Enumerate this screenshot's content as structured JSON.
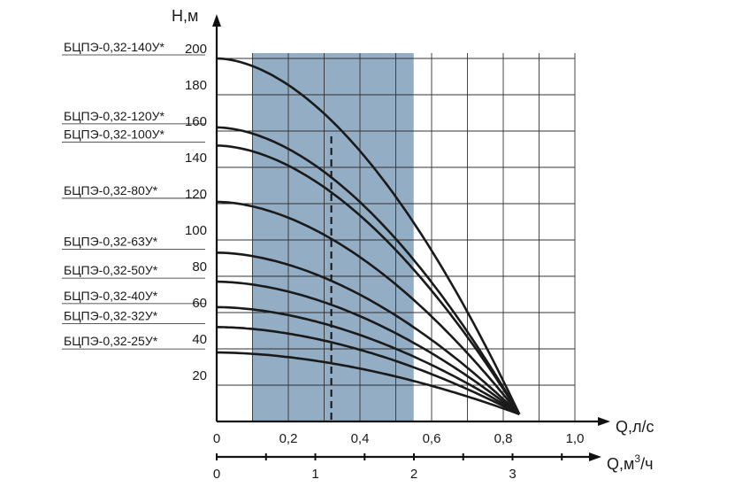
{
  "chart_data": {
    "type": "line",
    "ylabel": "Н,м",
    "xlabel": "Q,л/с",
    "x2label_base": "Q,м",
    "x2label_sup": "3",
    "x2label_tail": "/ч",
    "xlim": [
      0,
      1.0
    ],
    "ylim": [
      0,
      210
    ],
    "x2lim": [
      0,
      3.6
    ],
    "grid": true,
    "x_ticks": [
      "0",
      "0,2",
      "0,4",
      "0,6",
      "0,8",
      "1,0"
    ],
    "x_tick_values": [
      0,
      0.2,
      0.4,
      0.6,
      0.8,
      1.0
    ],
    "y_ticks": [
      "20",
      "40",
      "60",
      "80",
      "100",
      "120",
      "140",
      "160",
      "180",
      "200"
    ],
    "y_tick_values": [
      20,
      40,
      60,
      80,
      100,
      120,
      140,
      160,
      180,
      200
    ],
    "x2_ticks": [
      "0",
      "1",
      "2",
      "3"
    ],
    "x2_tick_values": [
      0,
      1,
      2,
      3
    ],
    "working_zone": {
      "x": [
        0.1,
        0.55
      ],
      "color": "#93aec4"
    },
    "nominal_flow": 0.32,
    "end_point": {
      "x": 0.845,
      "y": 4
    },
    "series": [
      {
        "name": "БЦПЭ-0,32-140У*",
        "shutoff_head": 200
      },
      {
        "name": "БЦПЭ-0,32-120У*",
        "shutoff_head": 162
      },
      {
        "name": "БЦПЭ-0,32-100У*",
        "shutoff_head": 152
      },
      {
        "name": "БЦПЭ-0,32-80У*",
        "shutoff_head": 121
      },
      {
        "name": "БЦПЭ-0,32-63У*",
        "shutoff_head": 93
      },
      {
        "name": "БЦПЭ-0,32-50У*",
        "shutoff_head": 77
      },
      {
        "name": "БЦПЭ-0,32-40У*",
        "shutoff_head": 63
      },
      {
        "name": "БЦПЭ-0,32-32У*",
        "shutoff_head": 52
      },
      {
        "name": "БЦПЭ-0,32-25У*",
        "shutoff_head": 38
      }
    ],
    "colors": {
      "curve": "#1a1a1a",
      "grid": "#333333",
      "zone": "#93aec4"
    }
  }
}
